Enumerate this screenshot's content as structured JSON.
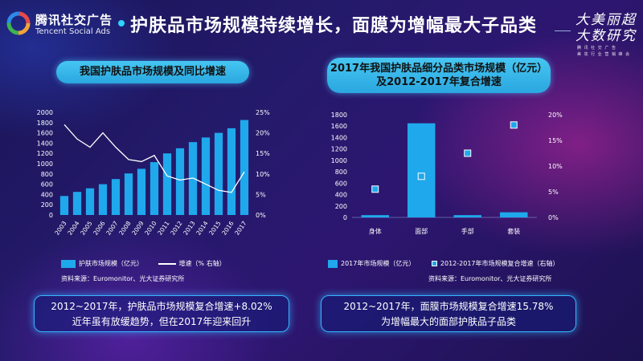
{
  "header": {
    "logo_cn": "腾讯社交广告",
    "logo_en": "Tencent Social Ads",
    "title": "护肤品市场规模持续增长，面膜为增幅最大子品类",
    "brand_line1": "大美丽超",
    "brand_line2": "大数研究",
    "brand_sub1": "腾 讯 社 交 广 告",
    "brand_sub2": "美 妆 行 业 营 销 峰 会"
  },
  "left": {
    "title": "我国护肤品市场规模及同比增速",
    "legend_bar": "护肤市场规模（亿元）",
    "legend_line": "增速（%  右轴）",
    "source": "资料来源：Euromonitor、光大证券研究所",
    "summary_line1": "2012~2017年，护肤品市场规模复合增速+8.02%",
    "summary_line2": "近年虽有放缓趋势，但在2017年迎来回升"
  },
  "right": {
    "title_line1": "2017年我国护肤品细分品类市场规模（亿元）",
    "title_line2": "及2012-2017年复合增速",
    "legend_bar": "2017年市场规模（亿元）",
    "legend_point": "2012-2017年市场规模复合增速（右轴）",
    "source": "资料来源：Euromonitor、光大证券研究所",
    "summary_line1": "2012~2017年，面膜市场规模复合增速15.78%",
    "summary_line2": "为增幅最大的面部护肤品子品类"
  },
  "colors": {
    "accent": "#1fa8ec",
    "title_pill": "#3bbcf0",
    "line": "#ffffff"
  },
  "chart_data": [
    {
      "type": "bar",
      "title": "我国护肤品市场规模及同比增速",
      "categories": [
        "2003",
        "2004",
        "2005",
        "2006",
        "2007",
        "2008",
        "2009",
        "2010",
        "2011",
        "2012",
        "2013",
        "2014",
        "2015",
        "2016",
        "2017"
      ],
      "series": [
        {
          "name": "护肤市场规模（亿元）",
          "type": "bar",
          "axis": "left",
          "values": [
            370,
            450,
            520,
            600,
            700,
            810,
            900,
            1030,
            1200,
            1300,
            1420,
            1510,
            1600,
            1690,
            1850
          ]
        },
        {
          "name": "增速（%  右轴）",
          "type": "line",
          "axis": "right",
          "values": [
            22,
            18.5,
            16.5,
            20,
            16.5,
            13.5,
            13,
            14.5,
            9.5,
            8.5,
            9,
            7.5,
            6,
            5.5,
            10.5
          ]
        }
      ],
      "ylim": [
        0,
        2000
      ],
      "yticks": [
        0,
        200,
        400,
        600,
        800,
        1000,
        1200,
        1400,
        1600,
        1800,
        2000
      ],
      "y2lim": [
        0,
        25
      ],
      "y2ticks": [
        "0%",
        "5%",
        "10%",
        "15%",
        "20%",
        "25%"
      ]
    },
    {
      "type": "bar",
      "title": "2017年我国护肤品细分品类市场规模（亿元）及2012-2017年复合增速",
      "categories": [
        "身体",
        "面部",
        "手部",
        "套装"
      ],
      "series": [
        {
          "name": "2017年市场规模（亿元）",
          "type": "bar",
          "axis": "left",
          "values": [
            40,
            1650,
            40,
            90
          ]
        },
        {
          "name": "2012-2017年市场规模复合增速（右轴）",
          "type": "scatter",
          "axis": "right",
          "values": [
            5.5,
            8,
            12.5,
            18
          ]
        }
      ],
      "ylim": [
        0,
        1800
      ],
      "yticks": [
        0,
        200,
        400,
        600,
        800,
        1000,
        1200,
        1400,
        1600,
        1800
      ],
      "y2lim": [
        0,
        20
      ],
      "y2ticks": [
        "0%",
        "5%",
        "10%",
        "15%",
        "20%"
      ]
    }
  ]
}
